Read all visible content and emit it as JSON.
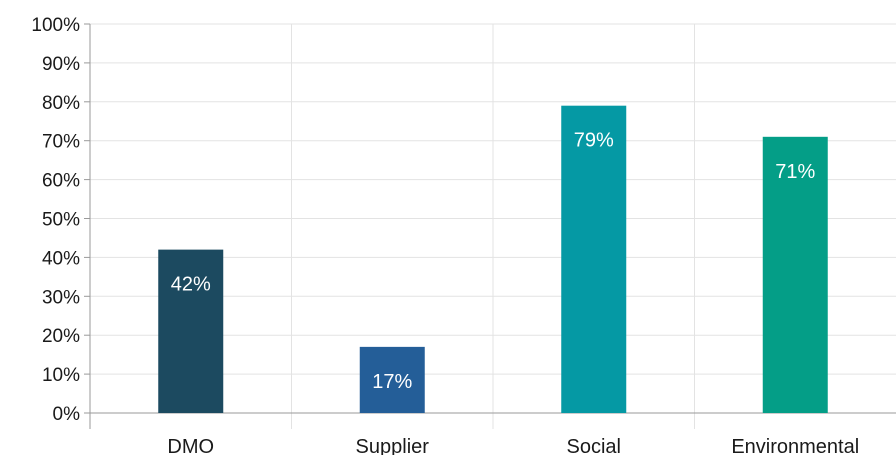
{
  "chart_data": {
    "type": "bar",
    "categories": [
      "DMO",
      "Supplier",
      "Social",
      "Environmental"
    ],
    "values": [
      42,
      17,
      79,
      71
    ],
    "data_labels": [
      "42%",
      "17%",
      "79%",
      "71%"
    ],
    "colors": [
      "#1c4a60",
      "#245e98",
      "#0599a4",
      "#049e87"
    ],
    "ylim": [
      0,
      100
    ],
    "yticks": [
      0,
      10,
      20,
      30,
      40,
      50,
      60,
      70,
      80,
      90,
      100
    ],
    "ytick_labels": [
      "0%",
      "10%",
      "20%",
      "30%",
      "40%",
      "50%",
      "60%",
      "70%",
      "80%",
      "90%",
      "100%"
    ],
    "title": "",
    "xlabel": "",
    "ylabel": "",
    "grid": true,
    "legend": "none"
  }
}
